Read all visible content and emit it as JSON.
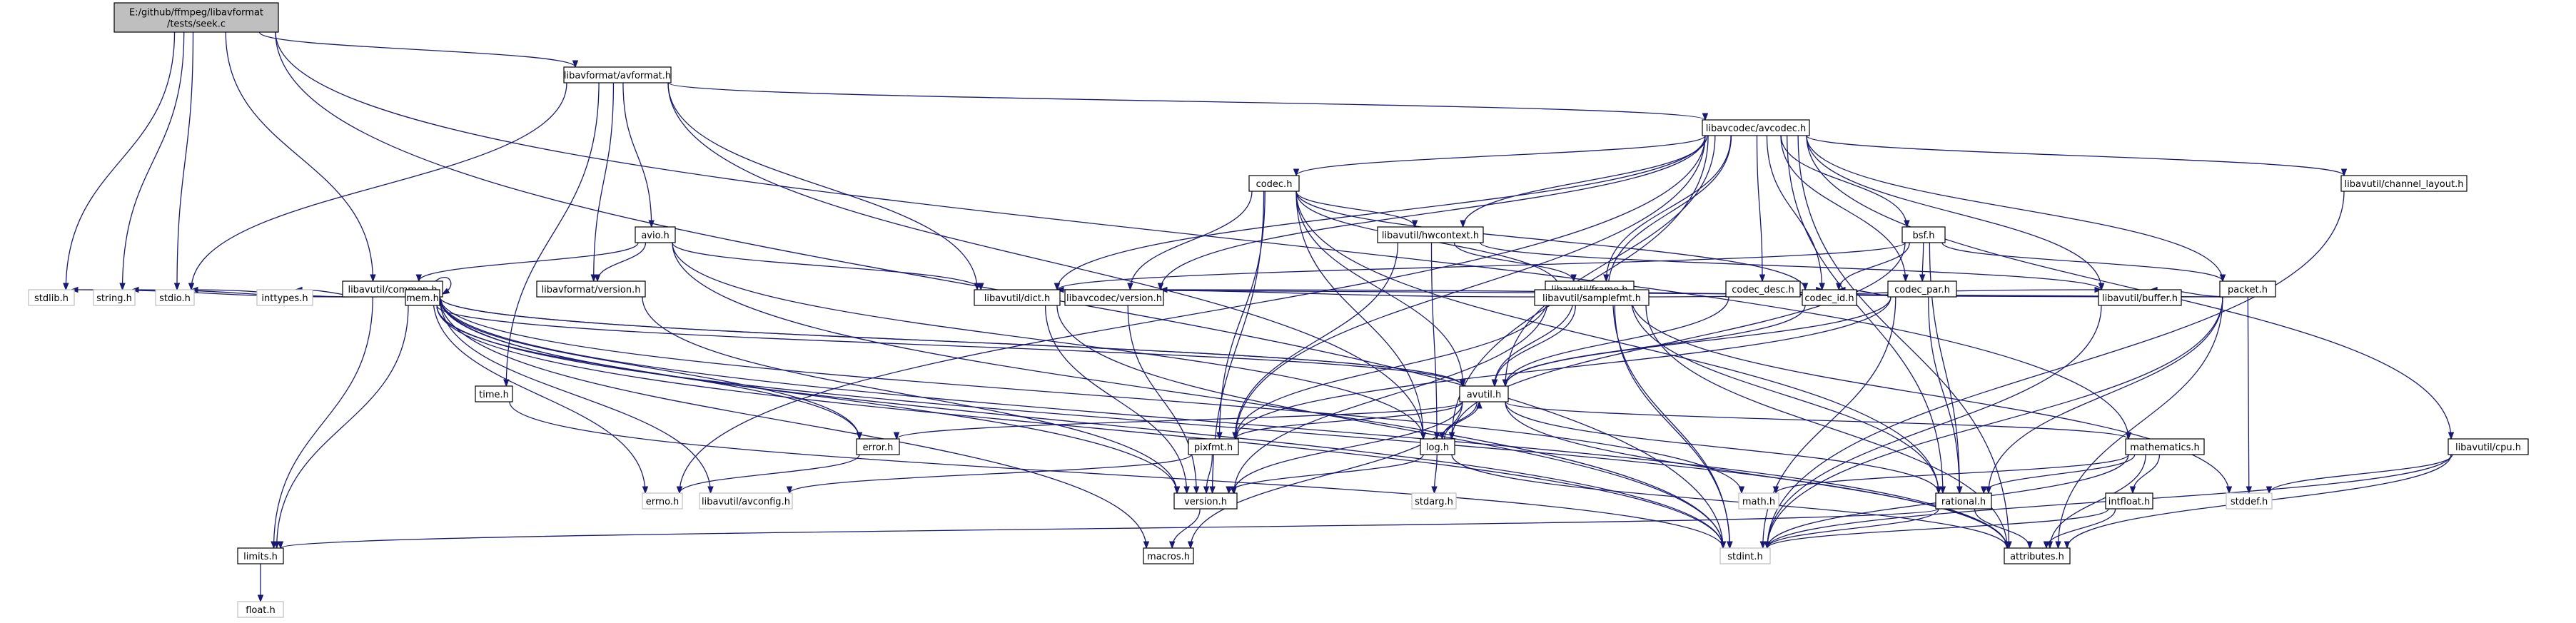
{
  "graph": {
    "nodes": [
      {
        "id": "root",
        "label": "E:/github/ffmpeg/libavformat\n/tests/seek.c",
        "kind": "root"
      },
      {
        "id": "avformat",
        "label": "libavformat/avformat.h",
        "kind": "doc"
      },
      {
        "id": "avcodec",
        "label": "libavcodec/avcodec.h",
        "kind": "doc"
      },
      {
        "id": "codec",
        "label": "codec.h",
        "kind": "doc"
      },
      {
        "id": "hwcontext",
        "label": "libavutil/hwcontext.h",
        "kind": "doc"
      },
      {
        "id": "bsf",
        "label": "bsf.h",
        "kind": "doc"
      },
      {
        "id": "chlayout",
        "label": "libavutil/channel_layout.h",
        "kind": "doc"
      },
      {
        "id": "avio",
        "label": "avio.h",
        "kind": "doc"
      },
      {
        "id": "lavfversion",
        "label": "libavformat/version.h",
        "kind": "doc"
      },
      {
        "id": "common",
        "label": "libavutil/common.h",
        "kind": "doc"
      },
      {
        "id": "frame",
        "label": "libavutil/frame.h",
        "kind": "doc"
      },
      {
        "id": "codecdesc",
        "label": "codec_desc.h",
        "kind": "doc"
      },
      {
        "id": "codecpar",
        "label": "codec_par.h",
        "kind": "doc"
      },
      {
        "id": "packet",
        "label": "packet.h",
        "kind": "doc"
      },
      {
        "id": "stdlib",
        "label": "stdlib.h",
        "kind": "system"
      },
      {
        "id": "string",
        "label": "string.h",
        "kind": "system"
      },
      {
        "id": "stdio",
        "label": "stdio.h",
        "kind": "system"
      },
      {
        "id": "inttypes",
        "label": "inttypes.h",
        "kind": "system"
      },
      {
        "id": "mem",
        "label": "mem.h",
        "kind": "doc"
      },
      {
        "id": "dict",
        "label": "libavutil/dict.h",
        "kind": "doc"
      },
      {
        "id": "lavcversion",
        "label": "libavcodec/version.h",
        "kind": "doc"
      },
      {
        "id": "samplefmt",
        "label": "libavutil/samplefmt.h",
        "kind": "doc"
      },
      {
        "id": "codecid",
        "label": "codec_id.h",
        "kind": "doc"
      },
      {
        "id": "buffer",
        "label": "libavutil/buffer.h",
        "kind": "doc"
      },
      {
        "id": "time",
        "label": "time.h",
        "kind": "doc"
      },
      {
        "id": "avutil",
        "label": "avutil.h",
        "kind": "doc"
      },
      {
        "id": "error",
        "label": "error.h",
        "kind": "doc"
      },
      {
        "id": "pixfmt",
        "label": "pixfmt.h",
        "kind": "doc"
      },
      {
        "id": "log",
        "label": "log.h",
        "kind": "doc"
      },
      {
        "id": "mathematics",
        "label": "mathematics.h",
        "kind": "doc"
      },
      {
        "id": "cpu",
        "label": "libavutil/cpu.h",
        "kind": "doc"
      },
      {
        "id": "errno",
        "label": "errno.h",
        "kind": "system"
      },
      {
        "id": "avconfig",
        "label": "libavutil/avconfig.h",
        "kind": "system"
      },
      {
        "id": "version",
        "label": "version.h",
        "kind": "doc"
      },
      {
        "id": "stdarg",
        "label": "stdarg.h",
        "kind": "system"
      },
      {
        "id": "math",
        "label": "math.h",
        "kind": "system"
      },
      {
        "id": "rational",
        "label": "rational.h",
        "kind": "doc"
      },
      {
        "id": "intfloat",
        "label": "intfloat.h",
        "kind": "doc"
      },
      {
        "id": "stddef",
        "label": "stddef.h",
        "kind": "system"
      },
      {
        "id": "limits",
        "label": "limits.h",
        "kind": "doc"
      },
      {
        "id": "macros",
        "label": "macros.h",
        "kind": "doc"
      },
      {
        "id": "stdint",
        "label": "stdint.h",
        "kind": "system"
      },
      {
        "id": "attributes",
        "label": "attributes.h",
        "kind": "doc"
      },
      {
        "id": "float",
        "label": "float.h",
        "kind": "system"
      }
    ],
    "edges": [
      [
        "root",
        "avformat"
      ],
      [
        "root",
        "common"
      ],
      [
        "root",
        "stdlib"
      ],
      [
        "root",
        "string"
      ],
      [
        "root",
        "stdio"
      ],
      [
        "root",
        "stdint"
      ],
      [
        "root",
        "mathematics"
      ],
      [
        "avformat",
        "avcodec"
      ],
      [
        "avformat",
        "avio"
      ],
      [
        "avformat",
        "lavfversion"
      ],
      [
        "avformat",
        "time"
      ],
      [
        "avformat",
        "stdio"
      ],
      [
        "avformat",
        "dict"
      ],
      [
        "avformat",
        "log"
      ],
      [
        "avcodec",
        "codec"
      ],
      [
        "avcodec",
        "hwcontext"
      ],
      [
        "avcodec",
        "bsf"
      ],
      [
        "avcodec",
        "chlayout"
      ],
      [
        "avcodec",
        "frame"
      ],
      [
        "avcodec",
        "codecdesc"
      ],
      [
        "avcodec",
        "codecpar"
      ],
      [
        "avcodec",
        "packet"
      ],
      [
        "avcodec",
        "dict"
      ],
      [
        "avcodec",
        "lavcversion"
      ],
      [
        "avcodec",
        "samplefmt"
      ],
      [
        "avcodec",
        "codecid"
      ],
      [
        "avcodec",
        "buffer"
      ],
      [
        "avcodec",
        "avutil"
      ],
      [
        "avcodec",
        "errno"
      ],
      [
        "avcodec",
        "log"
      ],
      [
        "avcodec",
        "pixfmt"
      ],
      [
        "avcodec",
        "rational"
      ],
      [
        "avcodec",
        "attributes"
      ],
      [
        "avcodec",
        "cpu"
      ],
      [
        "codec",
        "hwcontext"
      ],
      [
        "codec",
        "lavcversion"
      ],
      [
        "codec",
        "samplefmt"
      ],
      [
        "codec",
        "codecid"
      ],
      [
        "codec",
        "avutil"
      ],
      [
        "codec",
        "log"
      ],
      [
        "codec",
        "pixfmt"
      ],
      [
        "codec",
        "rational"
      ],
      [
        "codec",
        "version"
      ],
      [
        "hwcontext",
        "frame"
      ],
      [
        "hwcontext",
        "buffer"
      ],
      [
        "hwcontext",
        "log"
      ],
      [
        "hwcontext",
        "pixfmt"
      ],
      [
        "bsf",
        "packet"
      ],
      [
        "bsf",
        "codecpar"
      ],
      [
        "bsf",
        "codecid"
      ],
      [
        "bsf",
        "dict"
      ],
      [
        "bsf",
        "log"
      ],
      [
        "bsf",
        "rational"
      ],
      [
        "chlayout",
        "stdint"
      ],
      [
        "avio",
        "common"
      ],
      [
        "avio",
        "lavfversion"
      ],
      [
        "avio",
        "dict"
      ],
      [
        "avio",
        "log"
      ],
      [
        "avio",
        "stdint"
      ],
      [
        "lavfversion",
        "version"
      ],
      [
        "common",
        "common"
      ],
      [
        "common",
        "stdlib"
      ],
      [
        "common",
        "string"
      ],
      [
        "common",
        "stdio"
      ],
      [
        "common",
        "inttypes"
      ],
      [
        "common",
        "mem"
      ],
      [
        "common",
        "limits"
      ],
      [
        "common",
        "errno"
      ],
      [
        "common",
        "avconfig"
      ],
      [
        "common",
        "math"
      ],
      [
        "common",
        "attributes"
      ],
      [
        "common",
        "macros"
      ],
      [
        "common",
        "stdint"
      ],
      [
        "common",
        "version"
      ],
      [
        "common",
        "error"
      ],
      [
        "common",
        "avutil"
      ],
      [
        "frame",
        "dict"
      ],
      [
        "frame",
        "samplefmt"
      ],
      [
        "frame",
        "avutil"
      ],
      [
        "frame",
        "buffer"
      ],
      [
        "frame",
        "pixfmt"
      ],
      [
        "frame",
        "rational"
      ],
      [
        "frame",
        "version"
      ],
      [
        "frame",
        "stdint"
      ],
      [
        "frame",
        "stddef"
      ],
      [
        "codecdesc",
        "codecid"
      ],
      [
        "codecdesc",
        "avutil"
      ],
      [
        "codecpar",
        "avutil"
      ],
      [
        "codecpar",
        "rational"
      ],
      [
        "codecpar",
        "pixfmt"
      ],
      [
        "codecpar",
        "codecid"
      ],
      [
        "codecpar",
        "stdint"
      ],
      [
        "packet",
        "buffer"
      ],
      [
        "packet",
        "dict"
      ],
      [
        "packet",
        "rational"
      ],
      [
        "packet",
        "attributes"
      ],
      [
        "packet",
        "stdint"
      ],
      [
        "packet",
        "stddef"
      ],
      [
        "packet",
        "lavcversion"
      ],
      [
        "mem",
        "limits"
      ],
      [
        "mem",
        "stdint"
      ],
      [
        "mem",
        "attributes"
      ],
      [
        "mem",
        "error"
      ],
      [
        "mem",
        "avutil"
      ],
      [
        "dict",
        "stdint"
      ],
      [
        "dict",
        "version"
      ],
      [
        "lavcversion",
        "version"
      ],
      [
        "samplefmt",
        "avutil"
      ],
      [
        "samplefmt",
        "attributes"
      ],
      [
        "samplefmt",
        "stdint"
      ],
      [
        "codecid",
        "avutil"
      ],
      [
        "buffer",
        "stdint"
      ],
      [
        "time",
        "stdint"
      ],
      [
        "avutil",
        "error"
      ],
      [
        "avutil",
        "pixfmt"
      ],
      [
        "avutil",
        "log"
      ],
      [
        "avutil",
        "mathematics"
      ],
      [
        "avutil",
        "rational"
      ],
      [
        "avutil",
        "version"
      ],
      [
        "avutil",
        "macros"
      ],
      [
        "avutil",
        "attributes"
      ],
      [
        "avutil",
        "common"
      ],
      [
        "error",
        "errno"
      ],
      [
        "pixfmt",
        "avconfig"
      ],
      [
        "pixfmt",
        "version"
      ],
      [
        "log",
        "stdarg"
      ],
      [
        "log",
        "avutil"
      ],
      [
        "log",
        "attributes"
      ],
      [
        "log",
        "version"
      ],
      [
        "mathematics",
        "intfloat"
      ],
      [
        "mathematics",
        "rational"
      ],
      [
        "mathematics",
        "math"
      ],
      [
        "mathematics",
        "attributes"
      ],
      [
        "mathematics",
        "stdint"
      ],
      [
        "cpu",
        "stddef"
      ],
      [
        "cpu",
        "attributes"
      ],
      [
        "cpu",
        "stdint"
      ],
      [
        "version",
        "macros"
      ],
      [
        "rational",
        "limits"
      ],
      [
        "rational",
        "attributes"
      ],
      [
        "rational",
        "stdint"
      ],
      [
        "intfloat",
        "attributes"
      ],
      [
        "intfloat",
        "stdint"
      ],
      [
        "limits",
        "float"
      ]
    ]
  }
}
